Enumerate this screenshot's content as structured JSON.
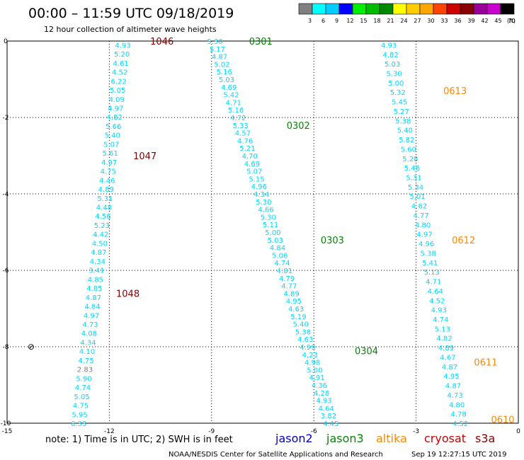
{
  "chart_data": {
    "type": "scatter",
    "title": "00:00 – 11:59 UTC 09/18/2019",
    "subtitle": "12 hour collection of altimeter wave heights",
    "xlim": [
      -15,
      0
    ],
    "ylim": [
      -10,
      0
    ],
    "x_ticks": [
      "-15",
      "-12",
      "-9",
      "-6",
      "-3",
      "0"
    ],
    "y_ticks": [
      "0",
      "-2",
      "-4",
      "-6",
      "-8",
      "-10"
    ],
    "grid": true,
    "colorbar": {
      "unit": "(ft)",
      "labels": [
        "3",
        "6",
        "9",
        "12",
        "15",
        "18",
        "21",
        "24",
        "27",
        "30",
        "33",
        "36",
        "39",
        "42",
        "45",
        "70"
      ],
      "colors": [
        "#808080",
        "#00ffff",
        "#00ccff",
        "#0000ff",
        "#00ee00",
        "#00bb00",
        "#008800",
        "#ffff00",
        "#ffcc00",
        "#ffa500",
        "#ff4400",
        "#cc0000",
        "#880000",
        "#990099",
        "#cc00cc",
        "#000000"
      ]
    },
    "passes": [
      {
        "label": "1046",
        "color": "#800000",
        "x": -10.8,
        "y": 0
      },
      {
        "label": "1047",
        "color": "#800000",
        "x": -11.3,
        "y": -3
      },
      {
        "label": "1048",
        "color": "#800000",
        "x": -11.8,
        "y": -6.6
      },
      {
        "label": "0301",
        "color": "#008800",
        "x": -7.9,
        "y": 0
      },
      {
        "label": "0302",
        "color": "#008800",
        "x": -6.8,
        "y": -2.2
      },
      {
        "label": "0303",
        "color": "#008800",
        "x": -5.8,
        "y": -5.2
      },
      {
        "label": "0304",
        "color": "#008800",
        "x": -4.8,
        "y": -8.1
      },
      {
        "label": "0613",
        "color": "#ff8800",
        "x": -2.2,
        "y": -1.3
      },
      {
        "label": "0612",
        "color": "#ff8800",
        "x": -1.95,
        "y": -5.2
      },
      {
        "label": "0611",
        "color": "#ff8800",
        "x": -1.3,
        "y": -8.4
      },
      {
        "label": "0610",
        "color": "#ff8800",
        "x": -0.8,
        "y": -9.9
      }
    ],
    "series": [
      {
        "x_start": -11.6,
        "y_start": -0.1,
        "x_end": -12.9,
        "y_end": -10.0,
        "values": [
          "4.93",
          "5.20",
          "4.61",
          "4.52",
          "6.22",
          "5.05",
          "4.09",
          "4.97",
          "4.82",
          "5.66",
          "5.40",
          "5.07",
          "5.61",
          "4.97",
          "4.75",
          "4.46",
          "4.89",
          "5.31",
          "4.48",
          "4.56",
          "5.23",
          "4.42",
          "4.50",
          "4.87",
          "4.34",
          "3.41",
          "4.85",
          "4.85",
          "4.87",
          "4.84",
          "4.97",
          "4.73",
          "4.08",
          "4.34",
          "4.10",
          "4.75",
          "2.83",
          "5.90",
          "4.74",
          "5.05",
          "4.75",
          "5.95",
          "6.33"
        ],
        "colors": {
          "2.83": "#808080"
        }
      },
      {
        "x_start": -8.9,
        "y_start": 0.0,
        "x_end": -5.5,
        "y_end": -10.0,
        "values": [
          "5.30",
          "5.17",
          "4.87",
          "5.02",
          "5.16",
          "5.03",
          "4.69",
          "5.42",
          "4.71",
          "5.16",
          "4.72",
          "5.33",
          "4.57",
          "4.76",
          "5.21",
          "4.70",
          "4.69",
          "5.07",
          "5.15",
          "4.96",
          "4.34",
          "5.30",
          "4.66",
          "5.30",
          "5.11",
          "5.00",
          "5.03",
          "4.84",
          "5.06",
          "4.74",
          "4.81",
          "4.79",
          "4.77",
          "4.89",
          "4.95",
          "4.63",
          "5.19",
          "5.40",
          "5.38",
          "4.63",
          "4.99",
          "4.23",
          "4.98",
          "5.00",
          "4.91",
          "4.36",
          "4.28",
          "4.93",
          "4.64",
          "3.82",
          "4.45"
        ],
        "colors": {}
      },
      {
        "x_start": -3.8,
        "y_start": -0.1,
        "x_end": -1.7,
        "y_end": -10.0,
        "values": [
          "4.93",
          "4.82",
          "5.03",
          "5.30",
          "5.00",
          "5.32",
          "5.45",
          "5.27",
          "5.38",
          "5.40",
          "5.82",
          "5.60",
          "5.28",
          "5.46",
          "5.31",
          "5.34",
          "5.01",
          "4.62",
          "4.77",
          "4.80",
          "4.97",
          "4.96",
          "5.38",
          "5.41",
          "5.13",
          "4.71",
          "4.64",
          "4.52",
          "4.93",
          "4.74",
          "5.13",
          "4.82",
          "4.89",
          "4.67",
          "4.87",
          "4.95",
          "4.87",
          "4.73",
          "4.80",
          "4.78",
          "4.52"
        ],
        "colors": {}
      }
    ],
    "legend": [
      {
        "name": "jason2",
        "color": "#0000cc"
      },
      {
        "name": "jason3",
        "color": "#008800"
      },
      {
        "name": "altika",
        "color": "#ff8800"
      },
      {
        "name": "cryosat",
        "color": "#cc0000"
      },
      {
        "name": "s3a",
        "color": "#880000"
      }
    ],
    "marker_symbol": "⊘",
    "marker_x": -14.4,
    "marker_y": -8.0
  },
  "notes": {
    "note_text": "note:  1) Time is in UTC; 2) SWH is in feet",
    "footer_left": "NOAA/NESDIS Center for Satellite Applications and Research",
    "footer_right": "Sep 19 12:27:15 UTC 2019"
  },
  "style": {
    "value_color": "#00d8ff",
    "grid_color": "#000000"
  }
}
